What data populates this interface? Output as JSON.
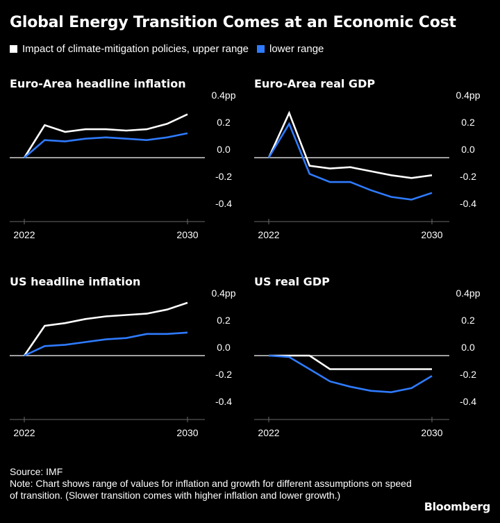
{
  "title": "Global Energy Transition Comes at an Economic Cost",
  "legend": [
    {
      "label": "Impact of climate-mitigation policies, upper range",
      "color": "#ffffff"
    },
    {
      "label": "lower range",
      "color": "#2f7bff"
    }
  ],
  "chart_data": [
    {
      "type": "line",
      "title": "Euro-Area headline inflation",
      "x": [
        2022,
        2023,
        2024,
        2025,
        2026,
        2027,
        2028,
        2029,
        2030
      ],
      "x_tick_labels": [
        "2022",
        "2030"
      ],
      "y_tick_labels": [
        "0.4pp",
        "0.2",
        "0.0",
        "-0.2",
        "-0.4"
      ],
      "ylim": [
        -0.4,
        0.4
      ],
      "series": [
        {
          "values": [
            0.0,
            0.24,
            0.19,
            0.21,
            0.21,
            0.2,
            0.21,
            0.25,
            0.32
          ],
          "color": "#ffffff"
        },
        {
          "values": [
            0.0,
            0.13,
            0.12,
            0.14,
            0.15,
            0.14,
            0.13,
            0.15,
            0.18
          ],
          "color": "#2f7bff"
        }
      ]
    },
    {
      "type": "line",
      "title": "Euro-Area real GDP",
      "x": [
        2022,
        2023,
        2024,
        2025,
        2026,
        2027,
        2028,
        2029,
        2030
      ],
      "x_tick_labels": [
        "2022",
        "2030"
      ],
      "y_tick_labels": [
        "0.4pp",
        "0.2",
        "0.0",
        "-0.2",
        "-0.4"
      ],
      "ylim": [
        -0.4,
        0.4
      ],
      "series": [
        {
          "values": [
            0.0,
            0.33,
            -0.06,
            -0.08,
            -0.07,
            -0.1,
            -0.13,
            -0.15,
            -0.13
          ],
          "color": "#ffffff"
        },
        {
          "values": [
            0.0,
            0.25,
            -0.12,
            -0.18,
            -0.18,
            -0.24,
            -0.29,
            -0.31,
            -0.26
          ],
          "color": "#2f7bff"
        }
      ]
    },
    {
      "type": "line",
      "title": "US headline inflation",
      "x": [
        2022,
        2023,
        2024,
        2025,
        2026,
        2027,
        2028,
        2029,
        2030
      ],
      "x_tick_labels": [
        "2022",
        "2030"
      ],
      "y_tick_labels": [
        "0.4pp",
        "0.2",
        "0.0",
        "-0.2",
        "-0.4"
      ],
      "ylim": [
        -0.4,
        0.4
      ],
      "series": [
        {
          "values": [
            0.0,
            0.22,
            0.24,
            0.27,
            0.29,
            0.3,
            0.31,
            0.34,
            0.39
          ],
          "color": "#ffffff"
        },
        {
          "values": [
            0.0,
            0.07,
            0.08,
            0.1,
            0.12,
            0.13,
            0.16,
            0.16,
            0.17
          ],
          "color": "#2f7bff"
        }
      ]
    },
    {
      "type": "line",
      "title": "US real GDP",
      "x": [
        2022,
        2023,
        2024,
        2025,
        2026,
        2027,
        2028,
        2029,
        2030
      ],
      "x_tick_labels": [
        "2022",
        "2030"
      ],
      "y_tick_labels": [
        "0.4pp",
        "0.2",
        "0.0",
        "-0.2",
        "-0.4"
      ],
      "ylim": [
        -0.4,
        0.4
      ],
      "series": [
        {
          "values": [
            0.0,
            0.0,
            0.0,
            -0.1,
            -0.1,
            -0.1,
            -0.1,
            -0.1,
            -0.1
          ],
          "color": "#ffffff"
        },
        {
          "values": [
            0.0,
            -0.01,
            -0.1,
            -0.19,
            -0.23,
            -0.26,
            -0.27,
            -0.24,
            -0.15
          ],
          "color": "#2f7bff"
        }
      ]
    }
  ],
  "footer": {
    "source": "Source: IMF",
    "note": "Note: Chart shows range of values for inflation and growth for different assumptions on speed of transition. (Slower transition comes with higher inflation and lower growth.)"
  },
  "brand": "Bloomberg"
}
